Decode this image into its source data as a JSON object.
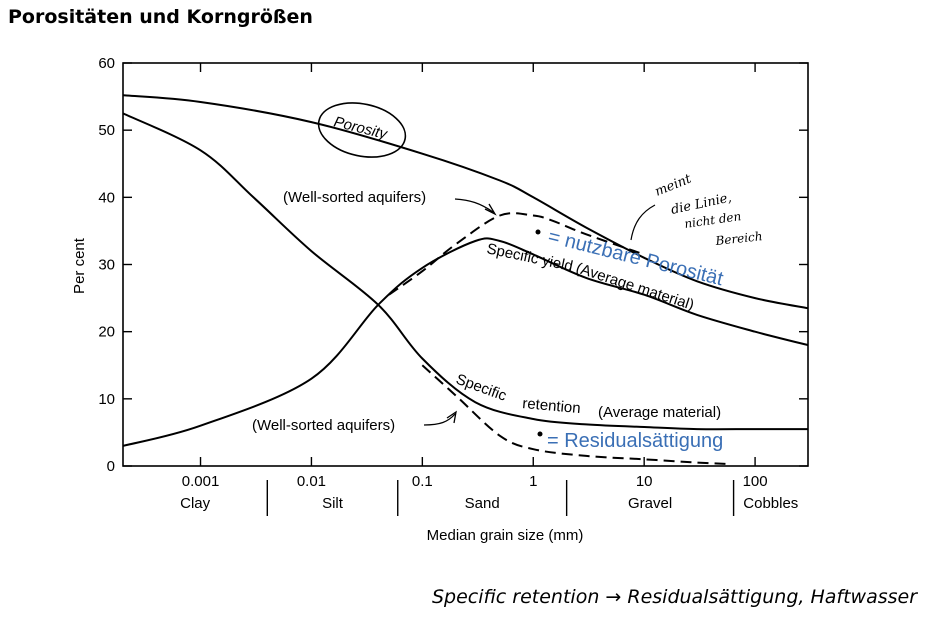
{
  "page": {
    "title": "Porositäten und Korngrößen",
    "caption": "Specific retention → Residualsättigung, Haftwasser"
  },
  "annotations": {
    "nutzbare": "= nutzbare Porosität",
    "residual": "= Residualsättigung",
    "handwritten": [
      "meint",
      "die Linie,",
      "nicht den",
      "Bereich"
    ],
    "accent_color": "#3a6fb5"
  },
  "chart_data": {
    "type": "line",
    "xscale": "log",
    "xlim": [
      0.0002,
      300
    ],
    "ylim": [
      0,
      60
    ],
    "xlabel": "Median grain size (mm)",
    "ylabel": "Per cent",
    "y_ticks": [
      "0",
      "10",
      "20",
      "30",
      "40",
      "50",
      "60"
    ],
    "x_ticks": [
      {
        "value": 0.001,
        "label": "0.001"
      },
      {
        "value": 0.01,
        "label": "0.01"
      },
      {
        "value": 0.1,
        "label": "0.1"
      },
      {
        "value": 1,
        "label": "1"
      },
      {
        "value": 10,
        "label": "10"
      },
      {
        "value": 100,
        "label": "100"
      }
    ],
    "classes": [
      {
        "name": "Clay",
        "from": 0.0002,
        "to": 0.004
      },
      {
        "name": "Silt",
        "from": 0.004,
        "to": 0.06
      },
      {
        "name": "Sand",
        "from": 0.06,
        "to": 2
      },
      {
        "name": "Gravel",
        "from": 2,
        "to": 64
      },
      {
        "name": "Cobbles",
        "from": 64,
        "to": 300
      }
    ],
    "series": [
      {
        "name": "Porosity",
        "style": "solid",
        "x": [
          0.0002,
          0.001,
          0.01,
          0.1,
          0.5,
          1,
          3,
          10,
          30,
          100,
          300
        ],
        "y": [
          55.2,
          54.2,
          51.2,
          46.5,
          42.5,
          40,
          35.5,
          31,
          27.5,
          25,
          23.5
        ]
      },
      {
        "name": "Specific yield (Average material)",
        "style": "solid",
        "x": [
          0.0002,
          0.001,
          0.01,
          0.04,
          0.1,
          0.3,
          0.5,
          1,
          3,
          10,
          30,
          100,
          300
        ],
        "y": [
          3,
          6,
          13,
          24,
          29.5,
          33.5,
          33.5,
          31.5,
          28,
          25.5,
          22.5,
          20,
          18
        ]
      },
      {
        "name": "Specific yield (Well-sorted aquifers)",
        "style": "dashed",
        "x": [
          0.05,
          0.1,
          0.2,
          0.5,
          1,
          1.5,
          3,
          10
        ],
        "y": [
          25.5,
          29,
          33,
          37.3,
          37.3,
          36.5,
          34.5,
          31.5
        ]
      },
      {
        "name": "Specific retention (Average material)",
        "style": "solid",
        "x": [
          0.0002,
          0.001,
          0.003,
          0.01,
          0.04,
          0.1,
          0.3,
          1,
          3,
          10,
          30,
          100,
          300
        ],
        "y": [
          52.5,
          47,
          40,
          32,
          24,
          16,
          9.5,
          7,
          6.2,
          5.8,
          5.5,
          5.5,
          5.5
        ]
      },
      {
        "name": "Specific retention (Well-sorted aquifers)",
        "style": "dashed",
        "x": [
          0.1,
          0.2,
          0.5,
          1,
          3,
          10,
          30,
          60
        ],
        "y": [
          15,
          10.5,
          4.5,
          2.5,
          1.5,
          1,
          0.5,
          0.3
        ]
      }
    ],
    "labels": {
      "porosity": "Porosity",
      "well_sorted_upper": "(Well-sorted aquifers)",
      "well_sorted_lower": "(Well-sorted aquifers)",
      "specific_yield_1": "Specific yield",
      "specific_yield_2": "(Average material)",
      "specific_retention_1": "Specific",
      "specific_retention_2": "retention",
      "specific_retention_3": "(Average material)"
    }
  }
}
